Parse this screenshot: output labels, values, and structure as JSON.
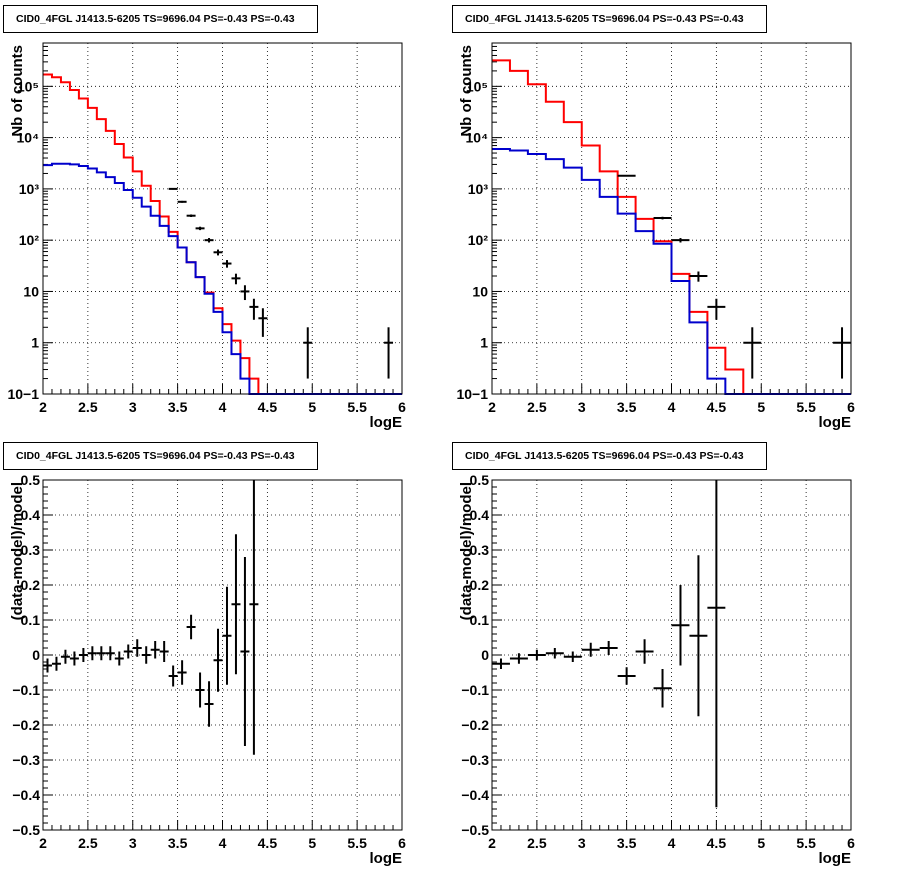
{
  "chart_data": [
    {
      "type": "line",
      "title": "CID0_4FGL J1413.5-6205 TS=9696.04 PS=-0.43 PS=-0.43",
      "xlabel": "logE",
      "ylabel": "Nb of counts",
      "xlim": [
        2,
        6
      ],
      "ylim": [
        0.1,
        700000
      ],
      "yscale": "log",
      "grid": true,
      "xticks": [
        "2",
        "2.5",
        "3",
        "3.5",
        "4",
        "4.5",
        "5",
        "5.5",
        "6"
      ],
      "yticks": [
        "10−1",
        "1",
        "10",
        "10²",
        "10³",
        "10⁴",
        "10⁵"
      ],
      "bin_edges": [
        2.0,
        2.1,
        2.2,
        2.3,
        2.4,
        2.5,
        2.6,
        2.7,
        2.8,
        2.9,
        3.0,
        3.1,
        3.2,
        3.3,
        3.4,
        3.5,
        3.6,
        3.7,
        3.8,
        3.9,
        4.0,
        4.1,
        4.2,
        4.3,
        4.4,
        4.5,
        4.6,
        4.7,
        4.8,
        4.9,
        5.0,
        5.1,
        5.2,
        5.3,
        5.4,
        5.5,
        5.6,
        5.7,
        5.8,
        5.9,
        6.0
      ],
      "series": [
        {
          "color": "#ff0000",
          "style": "hist",
          "values": [
            170000,
            150000,
            120000,
            85000,
            58000,
            38000,
            23000,
            13500,
            7500,
            4100,
            2200,
            1150,
            580,
            290,
            145,
            72,
            37,
            19,
            9.5,
            4.7,
            2.3,
            1.1,
            0.5,
            0.2,
            0.1,
            0.1,
            0.1,
            0.1,
            0.1,
            0.1,
            0.1,
            0.1,
            0.1,
            0.1,
            0.1,
            0.1,
            0.1,
            0.1,
            0.1,
            0.1
          ]
        },
        {
          "color": "#0000cc",
          "style": "hist",
          "values": [
            2900,
            3100,
            3100,
            3000,
            2800,
            2500,
            2100,
            1700,
            1300,
            950,
            670,
            450,
            300,
            190,
            120,
            72,
            37,
            19,
            9.0,
            4.0,
            1.6,
            0.6,
            0.2,
            0.1,
            0.1,
            0.1,
            0.1,
            0.1,
            0.1,
            0.1,
            0.1,
            0.1,
            0.1,
            0.1,
            0.1,
            0.1,
            0.1,
            0.1,
            0.1,
            0.1
          ]
        },
        {
          "color": "#000000",
          "style": "points",
          "x": [
            3.45,
            3.55,
            3.65,
            3.75,
            3.85,
            3.95,
            4.05,
            4.15,
            4.25,
            4.35,
            4.45,
            4.95,
            5.85
          ],
          "y": [
            1000,
            560,
            300,
            170,
            100,
            58,
            35,
            18,
            10,
            5,
            3,
            1,
            1
          ],
          "yerr_lo": [
            31,
            23,
            17,
            13,
            10,
            7.6,
            5.9,
            4.2,
            3.2,
            2.2,
            1.7,
            0.8,
            0.8
          ],
          "yerr_hi": [
            31,
            23,
            17,
            13,
            10,
            7.6,
            5.9,
            4.2,
            3.2,
            2.2,
            1.7,
            1.0,
            1.0
          ]
        }
      ]
    },
    {
      "type": "line",
      "title": "CID0_4FGL J1413.5-6205 TS=9696.04 PS=-0.43 PS=-0.43",
      "xlabel": "logE",
      "ylabel": "Nb of counts",
      "xlim": [
        2,
        6
      ],
      "ylim": [
        0.1,
        700000
      ],
      "yscale": "log",
      "grid": true,
      "xticks": [
        "2",
        "2.5",
        "3",
        "3.5",
        "4",
        "4.5",
        "5",
        "5.5",
        "6"
      ],
      "yticks": [
        "10−1",
        "1",
        "10",
        "10²",
        "10³",
        "10⁴",
        "10⁵"
      ],
      "bin_edges": [
        2.0,
        2.2,
        2.4,
        2.6,
        2.8,
        3.0,
        3.2,
        3.4,
        3.6,
        3.8,
        4.0,
        4.2,
        4.4,
        4.6,
        4.8,
        5.0,
        5.2,
        5.4,
        5.6,
        5.8,
        6.0
      ],
      "series": [
        {
          "color": "#ff0000",
          "style": "hist",
          "values": [
            320000,
            200000,
            110000,
            50000,
            20000,
            7000,
            2200,
            700,
            260,
            95,
            22,
            4,
            0.8,
            0.3,
            0.1,
            0.1,
            0.1,
            0.1,
            0.1,
            0.1
          ]
        },
        {
          "color": "#0000cc",
          "style": "hist",
          "values": [
            6000,
            5600,
            4800,
            3800,
            2600,
            1500,
            700,
            330,
            150,
            85,
            16,
            2.5,
            0.2,
            0.1,
            0.1,
            0.1,
            0.1,
            0.1,
            0.1,
            0.1
          ]
        },
        {
          "color": "#000000",
          "style": "points",
          "x": [
            3.5,
            3.9,
            4.1,
            4.3,
            4.5,
            4.9,
            5.9
          ],
          "y": [
            1800,
            270,
            100,
            20,
            5,
            1,
            1
          ],
          "xerr": [
            0.1,
            0.1,
            0.1,
            0.1,
            0.1,
            0.1,
            0.1
          ],
          "yerr_lo": [
            42,
            16,
            10,
            4.5,
            2.2,
            0.8,
            0.8
          ],
          "yerr_hi": [
            42,
            16,
            10,
            4.5,
            2.2,
            1.0,
            1.0
          ]
        }
      ]
    },
    {
      "type": "scatter",
      "title": "CID0_4FGL J1413.5-6205 TS=9696.04 PS=-0.43 PS=-0.43",
      "xlabel": "logE",
      "ylabel": "(data-model)/model",
      "xlim": [
        2,
        6
      ],
      "ylim": [
        -0.5,
        0.5
      ],
      "grid": true,
      "xticks": [
        "2",
        "2.5",
        "3",
        "3.5",
        "4",
        "4.5",
        "5",
        "5.5",
        "6"
      ],
      "yticks": [
        "−0.5",
        "−0.4",
        "−0.3",
        "−0.2",
        "−0.1",
        "0",
        "0.1",
        "0.2",
        "0.3",
        "0.4",
        "0.5"
      ],
      "series": [
        {
          "color": "#000000",
          "x": [
            2.05,
            2.15,
            2.25,
            2.35,
            2.45,
            2.55,
            2.65,
            2.75,
            2.85,
            2.95,
            3.05,
            3.15,
            3.25,
            3.35,
            3.45,
            3.55,
            3.65,
            3.75,
            3.85,
            3.95,
            4.05,
            4.15,
            4.25,
            4.35
          ],
          "y": [
            -0.03,
            -0.025,
            -0.005,
            -0.01,
            0.0,
            0.005,
            0.005,
            0.005,
            -0.01,
            0.01,
            0.02,
            0.0,
            0.015,
            0.01,
            -0.06,
            -0.05,
            0.08,
            -0.1,
            -0.14,
            -0.015,
            0.055,
            0.145,
            0.01,
            0.145
          ],
          "xerr": [
            0.05,
            0.05,
            0.05,
            0.05,
            0.05,
            0.05,
            0.05,
            0.05,
            0.05,
            0.05,
            0.05,
            0.05,
            0.05,
            0.05,
            0.05,
            0.05,
            0.05,
            0.05,
            0.05,
            0.05,
            0.05,
            0.05,
            0.05,
            0.05
          ],
          "yerr": [
            0.02,
            0.02,
            0.02,
            0.02,
            0.02,
            0.02,
            0.02,
            0.02,
            0.02,
            0.02,
            0.025,
            0.025,
            0.025,
            0.03,
            0.03,
            0.035,
            0.035,
            0.05,
            0.065,
            0.09,
            0.14,
            0.2,
            0.27,
            0.43
          ]
        }
      ]
    },
    {
      "type": "scatter",
      "title": "CID0_4FGL J1413.5-6205 TS=9696.04 PS=-0.43 PS=-0.43",
      "xlabel": "logE",
      "ylabel": "(data-model)/model",
      "xlim": [
        2,
        6
      ],
      "ylim": [
        -0.5,
        0.5
      ],
      "grid": true,
      "xticks": [
        "2",
        "2.5",
        "3",
        "3.5",
        "4",
        "4.5",
        "5",
        "5.5",
        "6"
      ],
      "yticks": [
        "−0.5",
        "−0.4",
        "−0.3",
        "−0.2",
        "−0.1",
        "0",
        "0.1",
        "0.2",
        "0.3",
        "0.4",
        "0.5"
      ],
      "series": [
        {
          "color": "#000000",
          "x": [
            2.1,
            2.3,
            2.5,
            2.7,
            2.9,
            3.1,
            3.3,
            3.5,
            3.7,
            3.9,
            4.1,
            4.3,
            4.5
          ],
          "y": [
            -0.025,
            -0.01,
            0.0,
            0.005,
            -0.005,
            0.015,
            0.02,
            -0.06,
            0.01,
            -0.095,
            0.085,
            0.055,
            0.135
          ],
          "xerr": [
            0.1,
            0.1,
            0.1,
            0.1,
            0.1,
            0.1,
            0.1,
            0.1,
            0.1,
            0.1,
            0.1,
            0.1,
            0.1
          ],
          "yerr": [
            0.015,
            0.015,
            0.015,
            0.015,
            0.015,
            0.02,
            0.02,
            0.025,
            0.035,
            0.055,
            0.115,
            0.23,
            0.57
          ]
        }
      ]
    }
  ]
}
